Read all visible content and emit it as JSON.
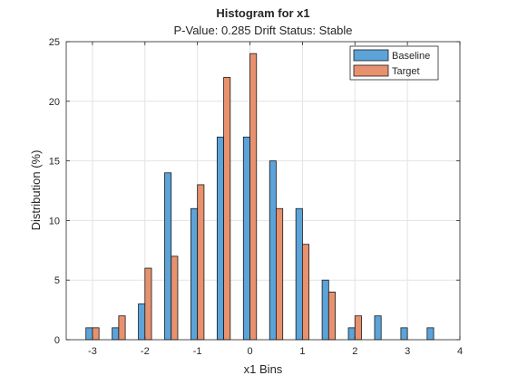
{
  "chart_data": {
    "type": "bar",
    "title": "Histogram for x1",
    "subtitle": "P-Value: 0.285 Drift Status: Stable",
    "xlabel": "x1 Bins",
    "ylabel": "Distribution (%)",
    "xlim": [
      -3.5,
      4
    ],
    "ylim": [
      0,
      25
    ],
    "x_ticks": [
      -3,
      -2,
      -1,
      0,
      1,
      2,
      3,
      4
    ],
    "y_ticks": [
      0,
      5,
      10,
      15,
      20,
      25
    ],
    "grid": true,
    "legend_position": "top-right",
    "bin_centers": [
      -3.0,
      -2.5,
      -2.0,
      -1.5,
      -1.0,
      -0.5,
      0.0,
      0.5,
      1.0,
      1.5,
      2.0,
      2.5,
      3.0,
      3.5
    ],
    "series": [
      {
        "name": "Baseline",
        "color": "#5BA3D9",
        "values": [
          1,
          1,
          3,
          14,
          11,
          17,
          17,
          15,
          11,
          5,
          1,
          2,
          1,
          1
        ]
      },
      {
        "name": "Target",
        "color": "#E8916E",
        "values": [
          1,
          2,
          6,
          7,
          13,
          22,
          24,
          11,
          8,
          4,
          2,
          0,
          0,
          0
        ]
      }
    ]
  }
}
